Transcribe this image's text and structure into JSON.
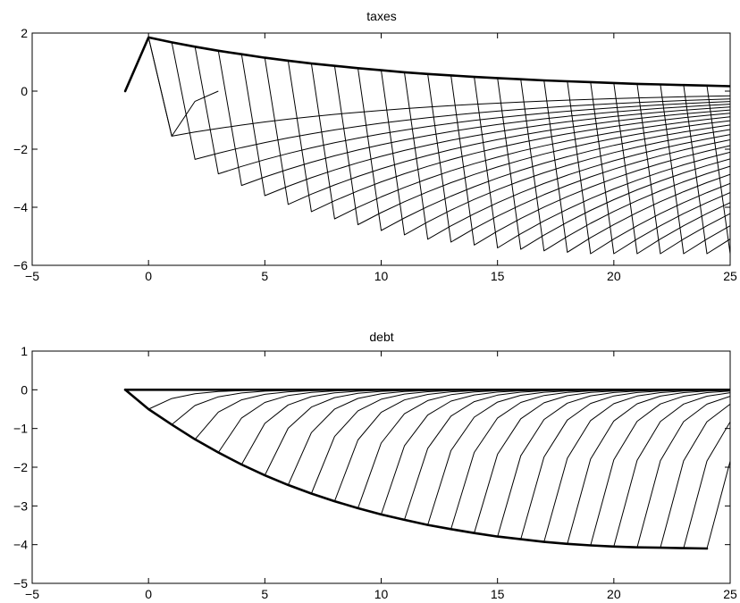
{
  "chart_data": [
    {
      "type": "line",
      "title": "taxes",
      "xlabel": "",
      "ylabel": "",
      "xlim": [
        -5,
        25
      ],
      "ylim": [
        -6,
        2
      ],
      "xticks": [
        -5,
        0,
        5,
        10,
        15,
        20,
        25
      ],
      "yticks": [
        -6,
        -4,
        -2,
        0,
        2
      ],
      "grid": false,
      "decay": 0.91,
      "series": [
        {
          "role": "thick",
          "x": [
            -1,
            0,
            1,
            2,
            3,
            4,
            5,
            6,
            7,
            8,
            9,
            10,
            11,
            12,
            13,
            14,
            15,
            16,
            17,
            18,
            19,
            20,
            21,
            22,
            23,
            24,
            25
          ],
          "y": [
            0,
            1.85,
            1.68,
            1.53,
            1.39,
            1.27,
            1.15,
            1.05,
            0.95,
            0.87,
            0.79,
            0.72,
            0.65,
            0.59,
            0.54,
            0.49,
            0.45,
            0.41,
            0.37,
            0.34,
            0.31,
            0.28,
            0.25,
            0.23,
            0.21,
            0.19,
            0.17
          ]
        },
        {
          "role": "thin",
          "x": [
            0,
            1,
            2,
            3
          ],
          "y": [
            1.85,
            -1.55,
            -0.35,
            0
          ]
        }
      ],
      "fan": {
        "start_times": [
          0,
          1,
          2,
          3,
          4,
          5,
          6,
          7,
          8,
          9,
          10,
          11,
          12,
          13,
          14,
          15,
          16,
          17,
          18,
          19,
          20,
          21,
          22,
          23,
          24
        ],
        "trough": [
          -1.55,
          -2.35,
          -2.85,
          -3.25,
          -3.6,
          -3.9,
          -4.15,
          -4.4,
          -4.6,
          -4.8,
          -4.95,
          -5.1,
          -5.2,
          -5.3,
          -5.4,
          -5.45,
          -5.5,
          -5.55,
          -5.6,
          -5.6,
          -5.6,
          -5.6,
          -5.6,
          -5.6,
          -5.6
        ]
      }
    },
    {
      "type": "line",
      "title": "debt",
      "xlabel": "",
      "ylabel": "",
      "xlim": [
        -5,
        25
      ],
      "ylim": [
        -5,
        1
      ],
      "xticks": [
        -5,
        0,
        5,
        10,
        15,
        20,
        25
      ],
      "yticks": [
        -5,
        -4,
        -3,
        -2,
        -1,
        0,
        1
      ],
      "grid": false,
      "decay": 0.45,
      "series": [
        {
          "role": "thick",
          "x": [
            -1,
            0,
            1,
            2,
            3,
            4,
            5,
            6,
            7,
            8,
            9,
            10,
            11,
            12,
            13,
            14,
            15,
            16,
            17,
            18,
            19,
            20,
            21,
            22,
            23,
            24
          ],
          "y": [
            0,
            -0.5,
            -0.9,
            -1.28,
            -1.62,
            -1.93,
            -2.21,
            -2.46,
            -2.68,
            -2.88,
            -3.06,
            -3.22,
            -3.36,
            -3.49,
            -3.6,
            -3.7,
            -3.79,
            -3.86,
            -3.93,
            -3.98,
            -4.02,
            -4.05,
            -4.07,
            -4.08,
            -4.09,
            -4.1
          ]
        },
        {
          "role": "thick",
          "x": [
            -1,
            25
          ],
          "y": [
            0,
            0
          ]
        }
      ],
      "fan": {
        "start_times": [
          0,
          1,
          2,
          3,
          4,
          5,
          6,
          7,
          8,
          9,
          10,
          11,
          12,
          13,
          14,
          15,
          16,
          17,
          18,
          19,
          20,
          21,
          22,
          23,
          24
        ],
        "start_values": [
          -0.5,
          -0.9,
          -1.28,
          -1.62,
          -1.93,
          -2.21,
          -2.46,
          -2.68,
          -2.88,
          -3.06,
          -3.22,
          -3.36,
          -3.49,
          -3.6,
          -3.7,
          -3.79,
          -3.86,
          -3.93,
          -3.98,
          -4.02,
          -4.05,
          -4.07,
          -4.08,
          -4.09,
          -4.1
        ]
      }
    }
  ]
}
